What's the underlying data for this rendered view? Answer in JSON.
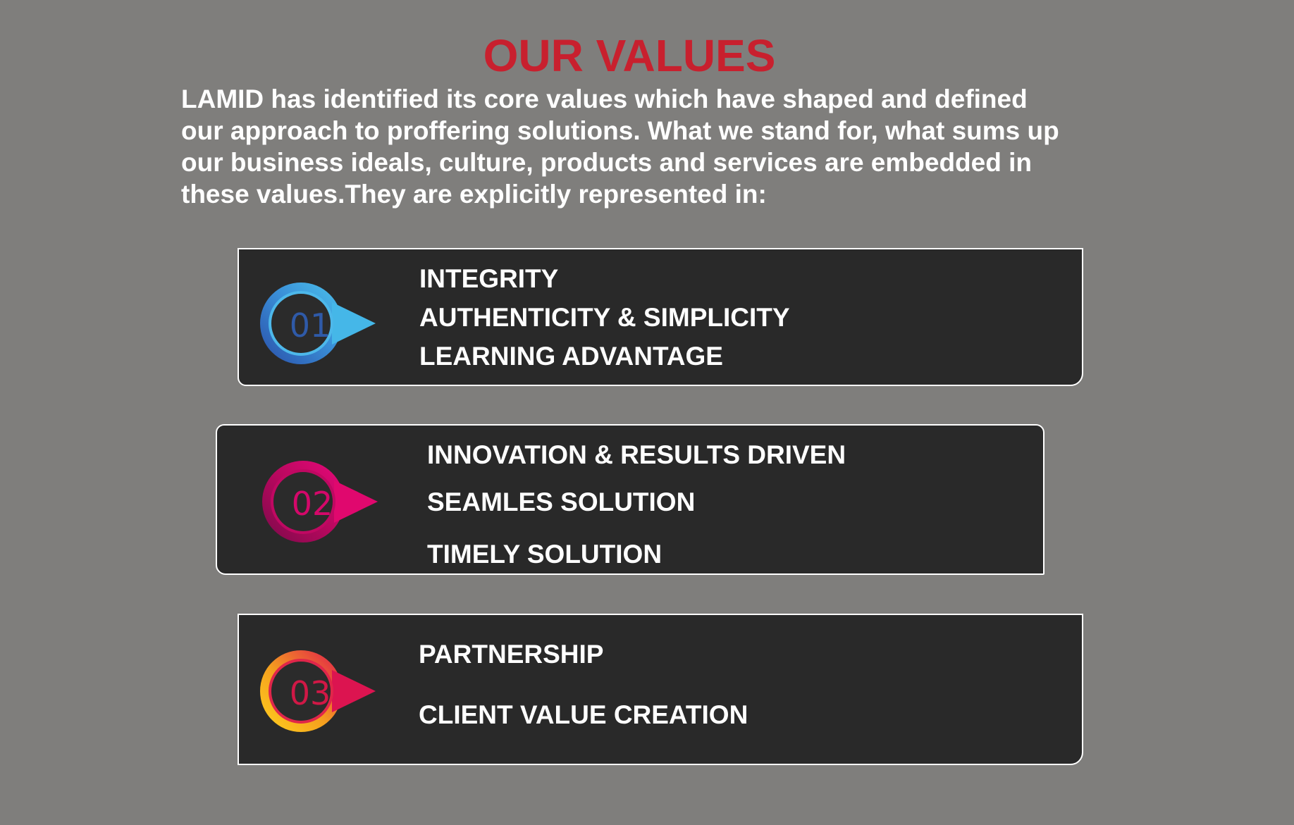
{
  "header": {
    "title": "OUR VALUES",
    "intro_lines": [
      "LAMID has identified its core values which have shaped and defined",
      "our approach to proffering solutions. What we stand for, what sums up",
      "our business ideals, culture, products and services are embedded in",
      "these values.They are explicitly represented in:"
    ]
  },
  "colors": {
    "background": "#7f7e7c",
    "title": "#c8202e",
    "card": "#292929",
    "badge_1": "#3a8fd8",
    "badge_2": "#d4086a",
    "badge_3": "#f5a01e"
  },
  "cards": [
    {
      "number": "01",
      "values": [
        "INTEGRITY",
        "AUTHENTICITY & SIMPLICITY",
        "LEARNING ADVANTAGE"
      ]
    },
    {
      "number": "02",
      "values": [
        "INNOVATION & RESULTS DRIVEN",
        "SEAMLES SOLUTION",
        "TIMELY SOLUTION"
      ]
    },
    {
      "number": "03",
      "values": [
        "PARTNERSHIP",
        "CLIENT VALUE CREATION"
      ]
    }
  ]
}
